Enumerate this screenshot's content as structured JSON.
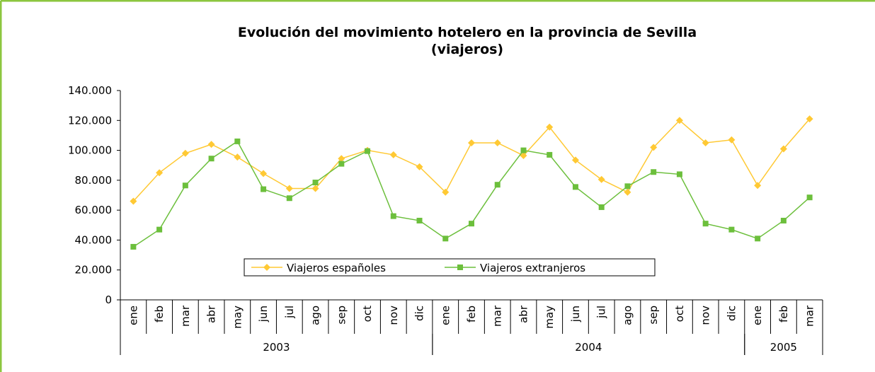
{
  "chart_data": {
    "type": "line",
    "title": "Evolución del movimiento hotelero en la provincia de Sevilla",
    "subtitle": "(viajeros)",
    "categories": [
      "ene",
      "feb",
      "mar",
      "abr",
      "may",
      "jun",
      "jul",
      "ago",
      "sep",
      "oct",
      "nov",
      "dic",
      "ene",
      "feb",
      "mar",
      "abr",
      "may",
      "jun",
      "jul",
      "ago",
      "sep",
      "oct",
      "nov",
      "dic",
      "ene",
      "feb",
      "mar"
    ],
    "groups": [
      {
        "label": "2003",
        "span": 12
      },
      {
        "label": "2004",
        "span": 12
      },
      {
        "label": "2005",
        "span": 3
      }
    ],
    "series": [
      {
        "name": "Viajeros españoles",
        "color": "#ffc934",
        "marker": "diamond",
        "values": [
          66000,
          85000,
          98000,
          104000,
          95500,
          84500,
          74500,
          74500,
          94500,
          100000,
          97000,
          89000,
          72000,
          105000,
          105000,
          96500,
          115500,
          93500,
          80500,
          72000,
          102000,
          120000,
          105000,
          107000,
          76500,
          101000,
          121000
        ]
      },
      {
        "name": "Viajeros extranjeros",
        "color": "#6cbf3c",
        "marker": "square",
        "values": [
          35500,
          47000,
          76500,
          94500,
          106000,
          74000,
          68000,
          78500,
          91000,
          99500,
          56000,
          53000,
          41000,
          51000,
          77000,
          100000,
          97000,
          75500,
          62000,
          76000,
          85500,
          84000,
          51000,
          47000,
          41000,
          53000,
          68500
        ]
      }
    ],
    "ylim": [
      0,
      140000
    ],
    "yticks": [
      0,
      {
        "value": 20000,
        "label": "20.000"
      },
      {
        "value": 40000,
        "label": "40.000"
      },
      {
        "value": 60000,
        "label": "60.000"
      },
      {
        "value": 80000,
        "label": "80.000"
      },
      {
        "value": 100000,
        "label": "100.000"
      },
      {
        "value": 120000,
        "label": "120.000"
      },
      {
        "value": 140000,
        "label": "140.000"
      }
    ],
    "grid": false
  }
}
